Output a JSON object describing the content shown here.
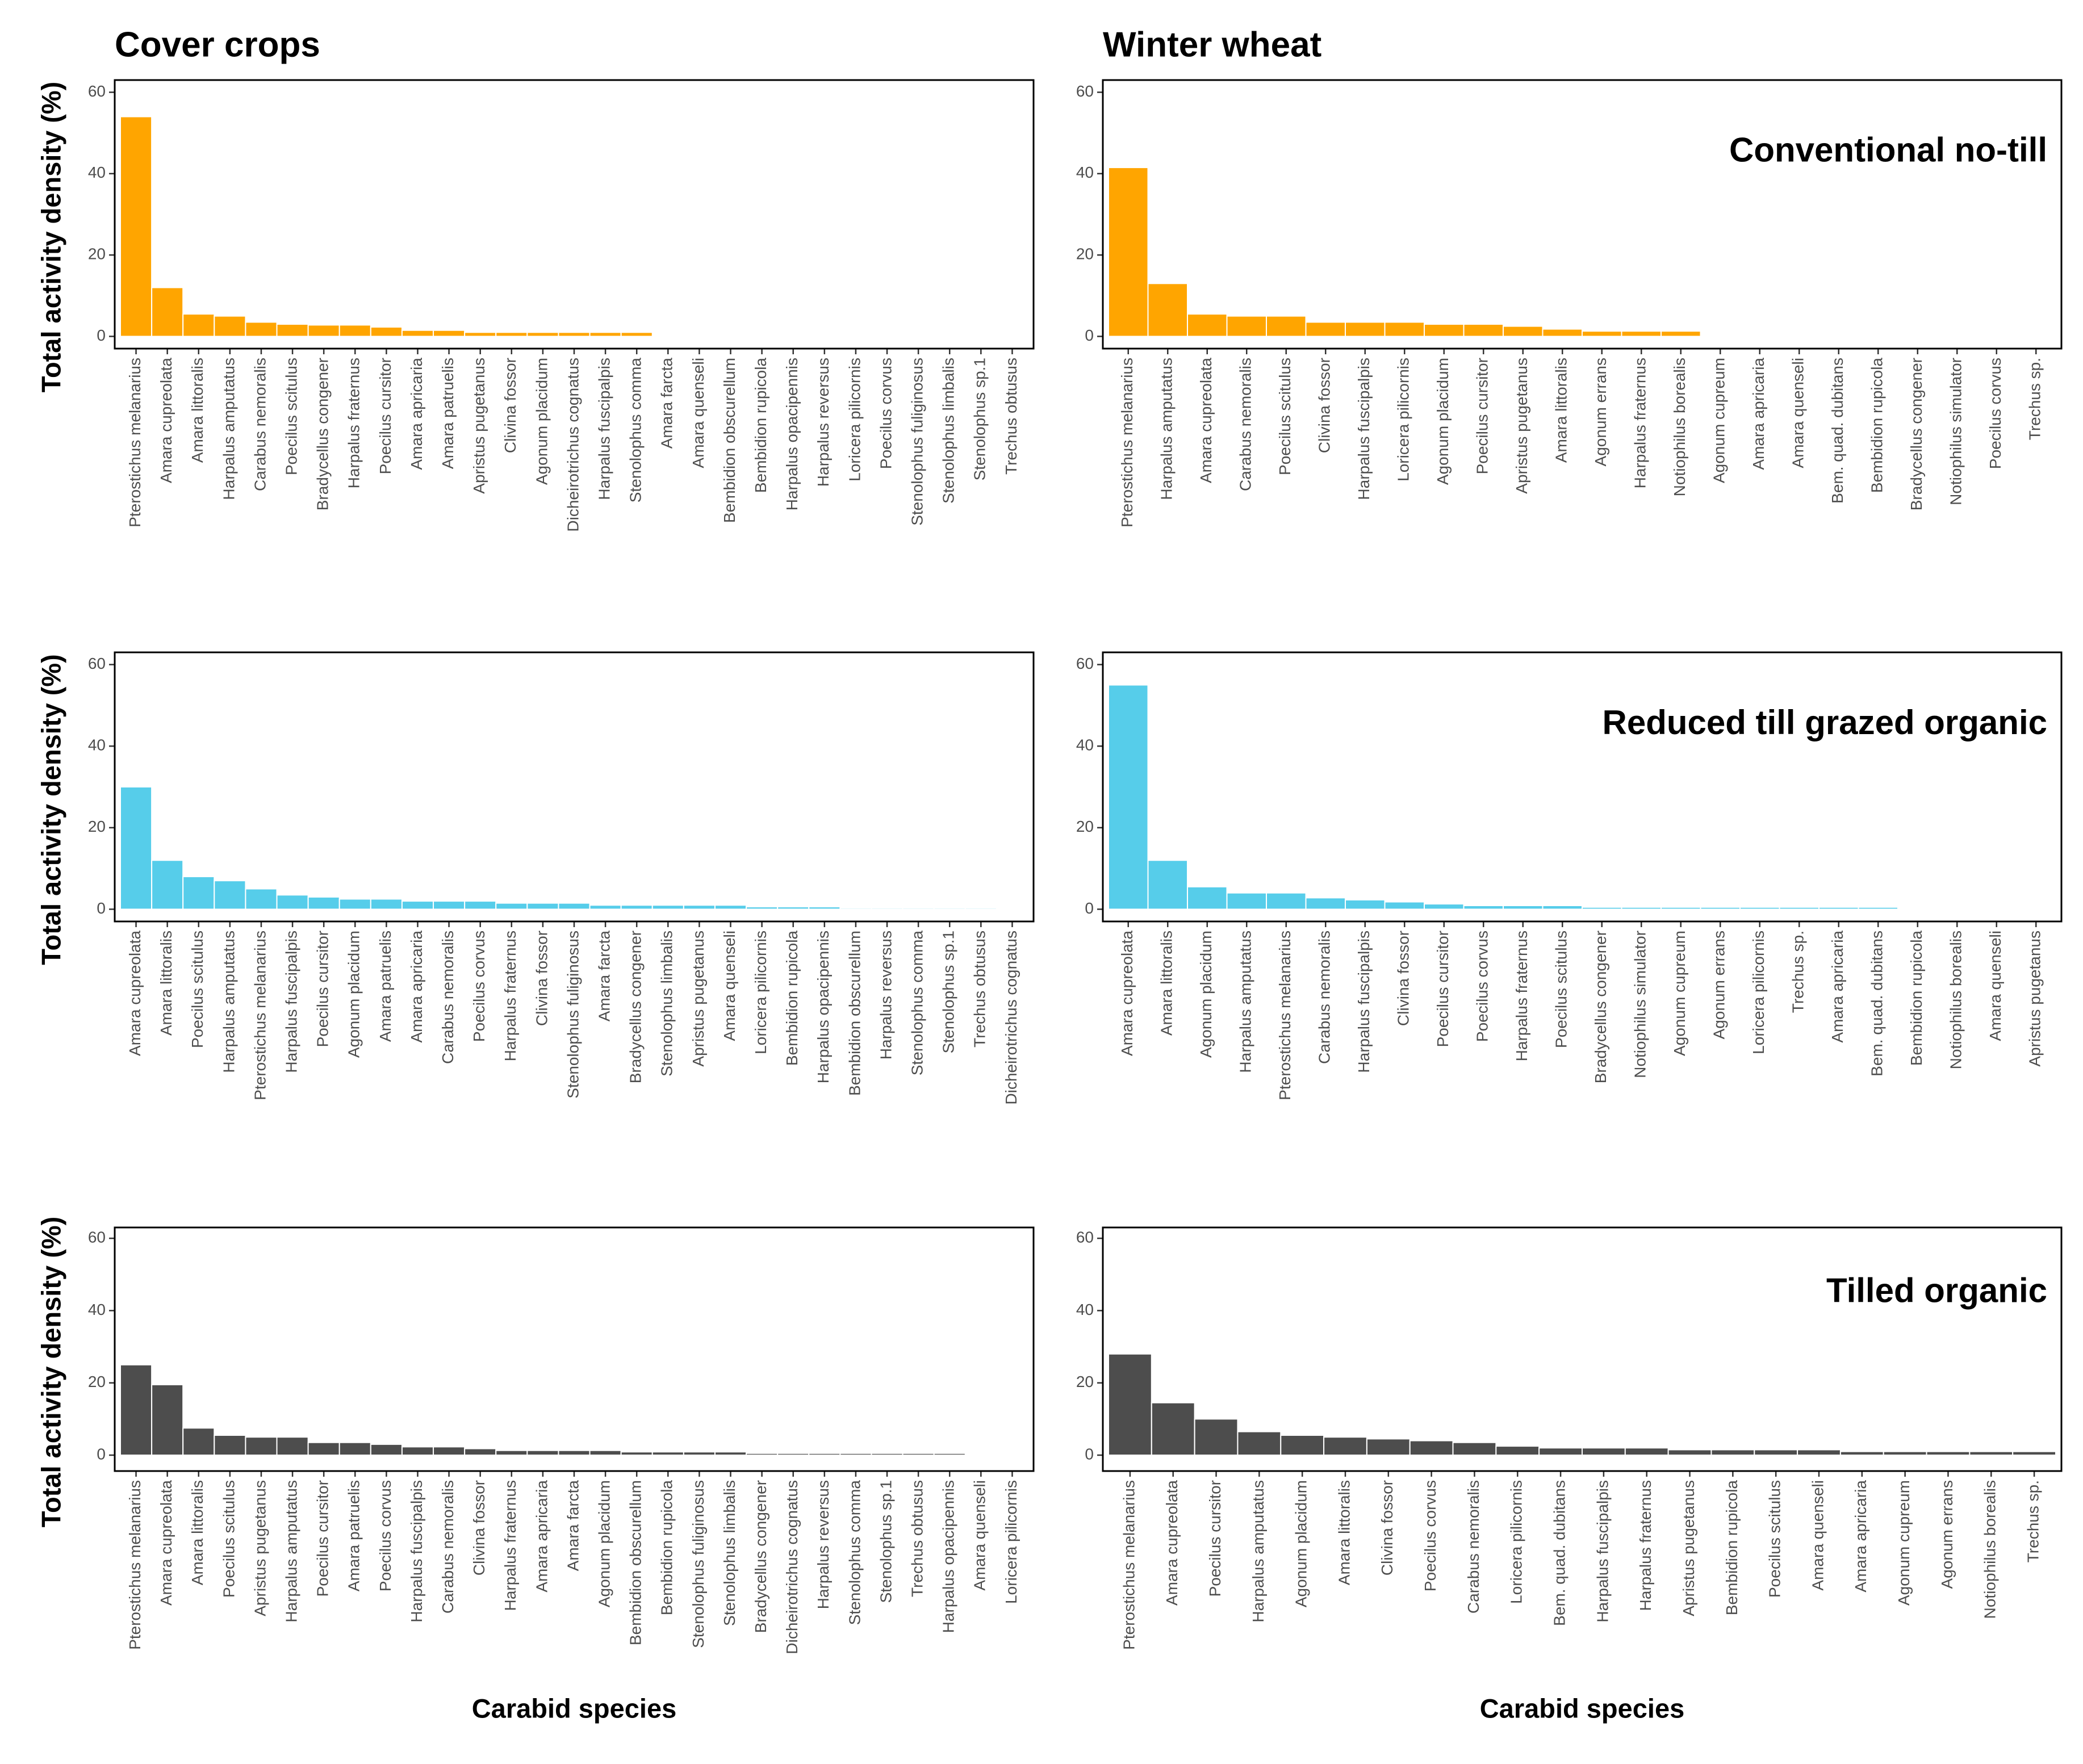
{
  "chart_data": [
    {
      "type": "bar",
      "title": "Cover crops",
      "y_label": "Total activity density (%)",
      "color": "#FFA500",
      "ylim": [
        -3,
        63
      ],
      "yticks": [
        0,
        20,
        40,
        60
      ],
      "categories": [
        "Pterostichus melanarius",
        "Amara cupreolata",
        "Amara littoralis",
        "Harpalus amputatus",
        "Carabus nemoralis",
        "Poecilus scitulus",
        "Bradycellus congener",
        "Harpalus fraternus",
        "Poecilus cursitor",
        "Amara apricaria",
        "Amara patruelis",
        "Apristus pugetanus",
        "Clivina fossor",
        "Agonum placidum",
        "Dicheirotrichus cognatus",
        "Harpalus fuscipalpis",
        "Stenolophus comma",
        "Amara farcta",
        "Amara quenseli",
        "Bembidion obscurellum",
        "Bembidion rupicola",
        "Harpalus opacipennis",
        "Harpalus reversus",
        "Loricera pilicornis",
        "Poecilus corvus",
        "Stenolophus fuliginosus",
        "Stenolophus limbalis",
        "Stenolophus sp.1",
        "Trechus obtusus"
      ],
      "values": [
        54,
        12,
        5.5,
        5,
        3.5,
        3,
        2.8,
        2.8,
        2.3,
        1.5,
        1.5,
        1,
        1,
        1,
        1,
        1,
        1,
        0,
        0,
        0,
        0,
        0,
        0,
        0,
        0,
        0,
        0,
        0,
        0
      ]
    },
    {
      "type": "bar",
      "title": "Winter wheat",
      "annotation": "Conventional no-till",
      "color": "#FFA500",
      "ylim": [
        -3,
        63
      ],
      "yticks": [
        0,
        20,
        40,
        60
      ],
      "categories": [
        "Pterostichus melanarius",
        "Harpalus amputatus",
        "Amara cupreolata",
        "Carabus nemoralis",
        "Poecilus scitulus",
        "Clivina fossor",
        "Harpalus fuscipalpis",
        "Loricera pilicornis",
        "Agonum placidum",
        "Poecilus cursitor",
        "Apristus pugetanus",
        "Amara littoralis",
        "Agonum errans",
        "Harpalus fraternus",
        "Notiophilus borealis",
        "Agonum cupreum",
        "Amara apricaria",
        "Amara quenseli",
        "Bem. quad. dubitans",
        "Bembidion rupicola",
        "Bradycellus congener",
        "Notiophilus simulator",
        "Poecilus corvus",
        "Trechus sp."
      ],
      "values": [
        41.5,
        13,
        5.5,
        5,
        5,
        3.5,
        3.5,
        3.5,
        3,
        3,
        2.5,
        1.8,
        1.3,
        1.3,
        1.3,
        0,
        0,
        0,
        0,
        0,
        0,
        0,
        0,
        0
      ]
    },
    {
      "type": "bar",
      "y_label": "Total activity density (%)",
      "color": "#56CDEA",
      "ylim": [
        -3,
        63
      ],
      "yticks": [
        0,
        20,
        40,
        60
      ],
      "categories": [
        "Amara cupreolata",
        "Amara littoralis",
        "Poecilus scitulus",
        "Harpalus amputatus",
        "Pterostichus melanarius",
        "Harpalus fuscipalpis",
        "Poecilus cursitor",
        "Agonum placidum",
        "Amara patruelis",
        "Amara apricaria",
        "Carabus nemoralis",
        "Poecilus corvus",
        "Harpalus fraternus",
        "Clivina fossor",
        "Stenolophus fuliginosus",
        "Amara farcta",
        "Bradycellus congener",
        "Stenolophus limbalis",
        "Apristus pugetanus",
        "Amara quenseli",
        "Loricera pilicornis",
        "Bembidion rupicola",
        "Harpalus opacipennis",
        "Bembidion obscurellum",
        "Harpalus reversus",
        "Stenolophus comma",
        "Stenolophus sp.1",
        "Trechus obtusus",
        "Dicheirotrichus cognatus"
      ],
      "values": [
        30,
        12,
        8,
        7,
        5,
        3.5,
        3,
        2.5,
        2.5,
        2,
        2,
        2,
        1.5,
        1.5,
        1.5,
        1,
        1,
        1,
        1,
        1,
        0.6,
        0.6,
        0.6,
        0.3,
        0.3,
        0.3,
        0.3,
        0.3,
        0
      ]
    },
    {
      "type": "bar",
      "annotation": "Reduced till grazed organic",
      "color": "#56CDEA",
      "ylim": [
        -3,
        63
      ],
      "yticks": [
        0,
        20,
        40,
        60
      ],
      "categories": [
        "Amara cupreolata",
        "Amara littoralis",
        "Agonum placidum",
        "Harpalus amputatus",
        "Pterostichus melanarius",
        "Carabus nemoralis",
        "Harpalus fuscipalpis",
        "Clivina fossor",
        "Poecilus cursitor",
        "Poecilus corvus",
        "Harpalus fraternus",
        "Poecilus scitulus",
        "Bradycellus congener",
        "Notiophilus simulator",
        "Agonum cupreum",
        "Agonum errans",
        "Loricera pilicornis",
        "Trechus sp.",
        "Amara apricaria",
        "Bem. quad. dubitans",
        "Bembidion rupicola",
        "Notiophilus borealis",
        "Amara quenseli",
        "Apristus pugetanus"
      ],
      "values": [
        55,
        12,
        5.5,
        4,
        4,
        2.8,
        2.3,
        1.8,
        1.3,
        0.9,
        0.9,
        0.9,
        0.5,
        0.5,
        0.5,
        0.5,
        0.5,
        0.5,
        0.5,
        0.5,
        0.2,
        0.2,
        0,
        0
      ]
    },
    {
      "type": "bar",
      "y_label": "Total activity density (%)",
      "x_label": "Carabid species",
      "color": "#4D4D4D",
      "ylim": [
        -4.4,
        63
      ],
      "yticks": [
        0,
        20,
        40,
        60
      ],
      "categories": [
        "Pterostichus melanarius",
        "Amara cupreolata",
        "Amara littoralis",
        "Poecilus scitulus",
        "Apristus pugetanus",
        "Harpalus amputatus",
        "Poecilus cursitor",
        "Amara patruelis",
        "Poecilus corvus",
        "Harpalus fuscipalpis",
        "Carabus nemoralis",
        "Clivina fossor",
        "Harpalus fraternus",
        "Amara apricaria",
        "Amara farcta",
        "Agonum placidum",
        "Bembidion obscurellum",
        "Bembidion rupicola",
        "Stenolophus fuliginosus",
        "Stenolophus limbalis",
        "Bradycellus congener",
        "Dicheirotrichus cognatus",
        "Harpalus reversus",
        "Stenolophus comma",
        "Stenolophus sp.1",
        "Trechus obtusus",
        "Harpalus opacipennis",
        "Amara quenseli",
        "Loricera pilicornis"
      ],
      "values": [
        25,
        19.5,
        7.5,
        5.5,
        5,
        5,
        3.5,
        3.5,
        3,
        2.3,
        2.3,
        1.8,
        1.3,
        1.3,
        1.3,
        1.3,
        0.9,
        0.9,
        0.9,
        0.9,
        0.5,
        0.5,
        0.5,
        0.5,
        0.5,
        0.5,
        0.5,
        0,
        0
      ]
    },
    {
      "type": "bar",
      "annotation": "Tilled organic",
      "x_label": "Carabid species",
      "color": "#4D4D4D",
      "ylim": [
        -4.4,
        63
      ],
      "yticks": [
        0,
        20,
        40,
        60
      ],
      "categories": [
        "Pterostichus melanarius",
        "Amara cupreolata",
        "Poecilus cursitor",
        "Harpalus amputatus",
        "Agonum placidum",
        "Amara littoralis",
        "Clivina fossor",
        "Poecilus corvus",
        "Carabus nemoralis",
        "Loricera pilicornis",
        "Bem. quad. dubitans",
        "Harpalus fuscipalpis",
        "Harpalus fraternus",
        "Apristus pugetanus",
        "Bembidion rupicola",
        "Poecilus scitulus",
        "Amara quenseli",
        "Amara apricaria",
        "Agonum cupreum",
        "Agonum errans",
        "Notiophilus borealis",
        "Trechus sp."
      ],
      "values": [
        28,
        14.5,
        10,
        6.5,
        5.5,
        5,
        4.5,
        4,
        3.5,
        2.5,
        2,
        2,
        2,
        1.5,
        1.5,
        1.5,
        1.5,
        1,
        1,
        1,
        1,
        1
      ]
    }
  ]
}
